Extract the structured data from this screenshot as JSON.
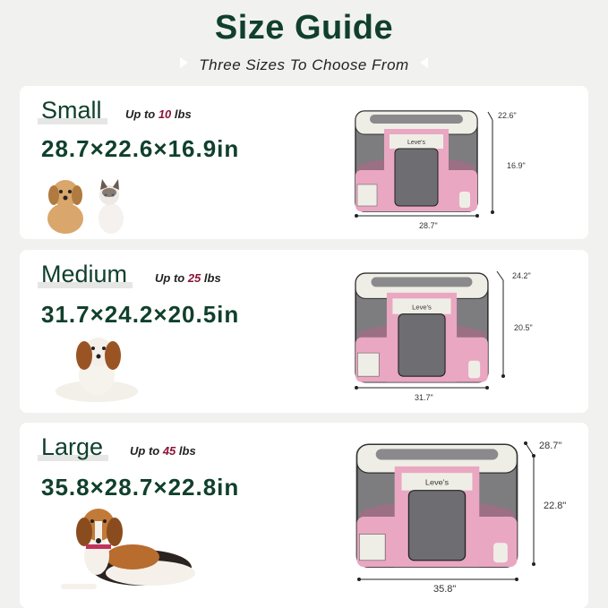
{
  "header": {
    "title": "Size Guide",
    "subtitle": "Three Sizes To Choose From"
  },
  "colors": {
    "title": "#10402c",
    "weight_number": "#8a1538",
    "pen_pink": "#e9a7c2",
    "pen_cream": "#efeee6"
  },
  "sizes": [
    {
      "name": "Small",
      "weight_prefix": "Up to ",
      "weight_value": "10",
      "weight_unit": " lbs",
      "dimensions": "28.7×22.6×16.9in",
      "depth": "22.6\"",
      "height": "16.9\"",
      "width": "28.7\"",
      "brand": "Leve's",
      "animals": [
        "dog",
        "cat"
      ]
    },
    {
      "name": "Medium",
      "weight_prefix": "Up to ",
      "weight_value": "25",
      "weight_unit": " lbs",
      "dimensions": "31.7×24.2×20.5in",
      "depth": "24.2\"",
      "height": "20.5\"",
      "width": "31.7\"",
      "brand": "Leve's",
      "animals": [
        "dog"
      ]
    },
    {
      "name": "Large",
      "weight_prefix": "Up to ",
      "weight_value": "45",
      "weight_unit": " lbs",
      "dimensions": "35.8×28.7×22.8in",
      "depth": "28.7\"",
      "height": "22.8\"",
      "width": "35.8\"",
      "brand": "Leve's",
      "animals": [
        "dog"
      ]
    }
  ]
}
